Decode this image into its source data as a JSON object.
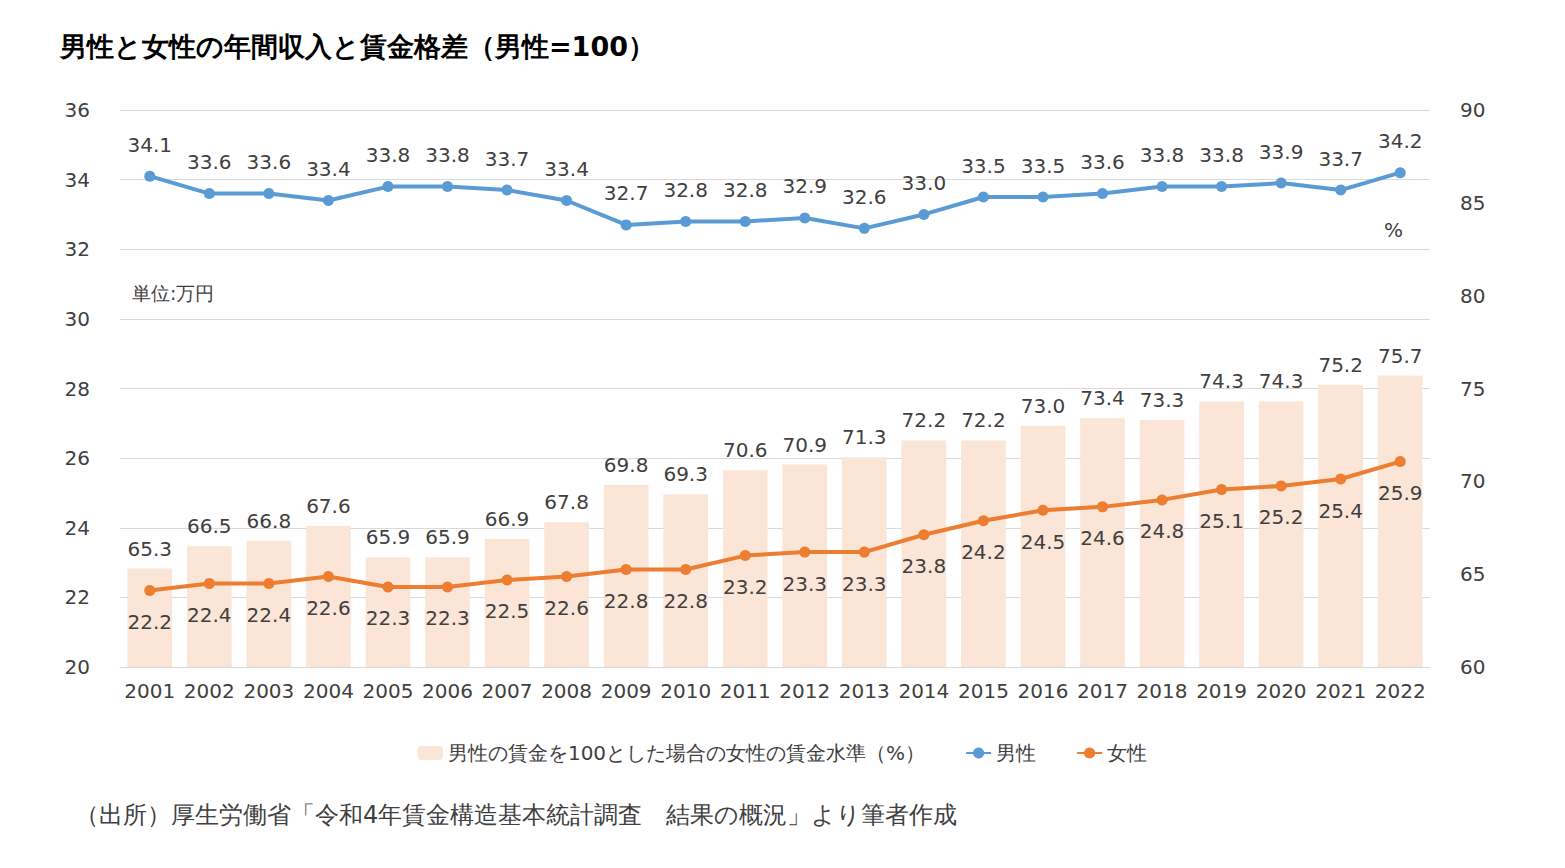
{
  "chart_data": {
    "type": "bar",
    "title": "男性と女性の年間収入と賃金格差（男性=100）",
    "annotations": [
      "単位:万円",
      "%",
      "（出所）厚生労働省「令和4年賃金構造基本統計調査　結果の概況」より筆者作成"
    ],
    "categories": [
      "2001",
      "2002",
      "2003",
      "2004",
      "2005",
      "2006",
      "2007",
      "2008",
      "2009",
      "2010",
      "2011",
      "2012",
      "2013",
      "2014",
      "2015",
      "2016",
      "2017",
      "2018",
      "2019",
      "2020",
      "2021",
      "2022"
    ],
    "series": [
      {
        "name": "男性の賃金を100とした場合の女性の賃金水準（%）",
        "type": "bar",
        "axis": "y2",
        "color": "#fbe5d6",
        "values": [
          65.3,
          66.5,
          66.8,
          67.6,
          65.9,
          65.9,
          66.9,
          67.8,
          69.8,
          69.3,
          70.6,
          70.9,
          71.3,
          72.2,
          72.2,
          73.0,
          73.4,
          73.3,
          74.3,
          74.3,
          75.2,
          75.7
        ],
        "value_labels": [
          "65.3",
          "66.5",
          "66.8",
          "67.6",
          "65.9",
          "65.9",
          "66.9",
          "67.8",
          "69.8",
          "69.3",
          "70.6",
          "70.9",
          "71.3",
          "72.2",
          "72.2",
          "73.0",
          "73.4",
          "73.3",
          "74.3",
          "74.3",
          "75.2",
          "75.7"
        ]
      },
      {
        "name": "男性",
        "type": "line",
        "color": "#5b9bd5",
        "marker": "circle",
        "values": [
          34.1,
          33.6,
          33.6,
          33.4,
          33.8,
          33.8,
          33.7,
          33.4,
          32.7,
          32.8,
          32.8,
          32.9,
          32.6,
          33.0,
          33.5,
          33.5,
          33.6,
          33.8,
          33.8,
          33.9,
          33.7,
          34.2
        ],
        "value_labels": [
          "34.1",
          "33.6",
          "33.6",
          "33.4",
          "33.8",
          "33.8",
          "33.7",
          "33.4",
          "32.7",
          "32.8",
          "32.8",
          "32.9",
          "32.6",
          "33.0",
          "33.5",
          "33.5",
          "33.6",
          "33.8",
          "33.8",
          "33.9",
          "33.7",
          "34.2"
        ]
      },
      {
        "name": "女性",
        "type": "line",
        "color": "#ed7d31",
        "marker": "circle",
        "values": [
          22.2,
          22.4,
          22.4,
          22.6,
          22.3,
          22.3,
          22.5,
          22.6,
          22.8,
          22.8,
          23.2,
          23.3,
          23.3,
          23.8,
          24.2,
          24.5,
          24.6,
          24.8,
          25.1,
          25.2,
          25.4,
          25.9
        ]
      }
    ],
    "ylim": [
      20,
      36
    ],
    "yticks": [
      20,
      22,
      24,
      26,
      28,
      30,
      32,
      34,
      36
    ],
    "y2lim": [
      60,
      90
    ],
    "y2ticks": [
      60,
      65,
      70,
      75,
      80,
      85,
      90
    ],
    "grid": true,
    "legend": "bottom",
    "data_labels": true
  }
}
